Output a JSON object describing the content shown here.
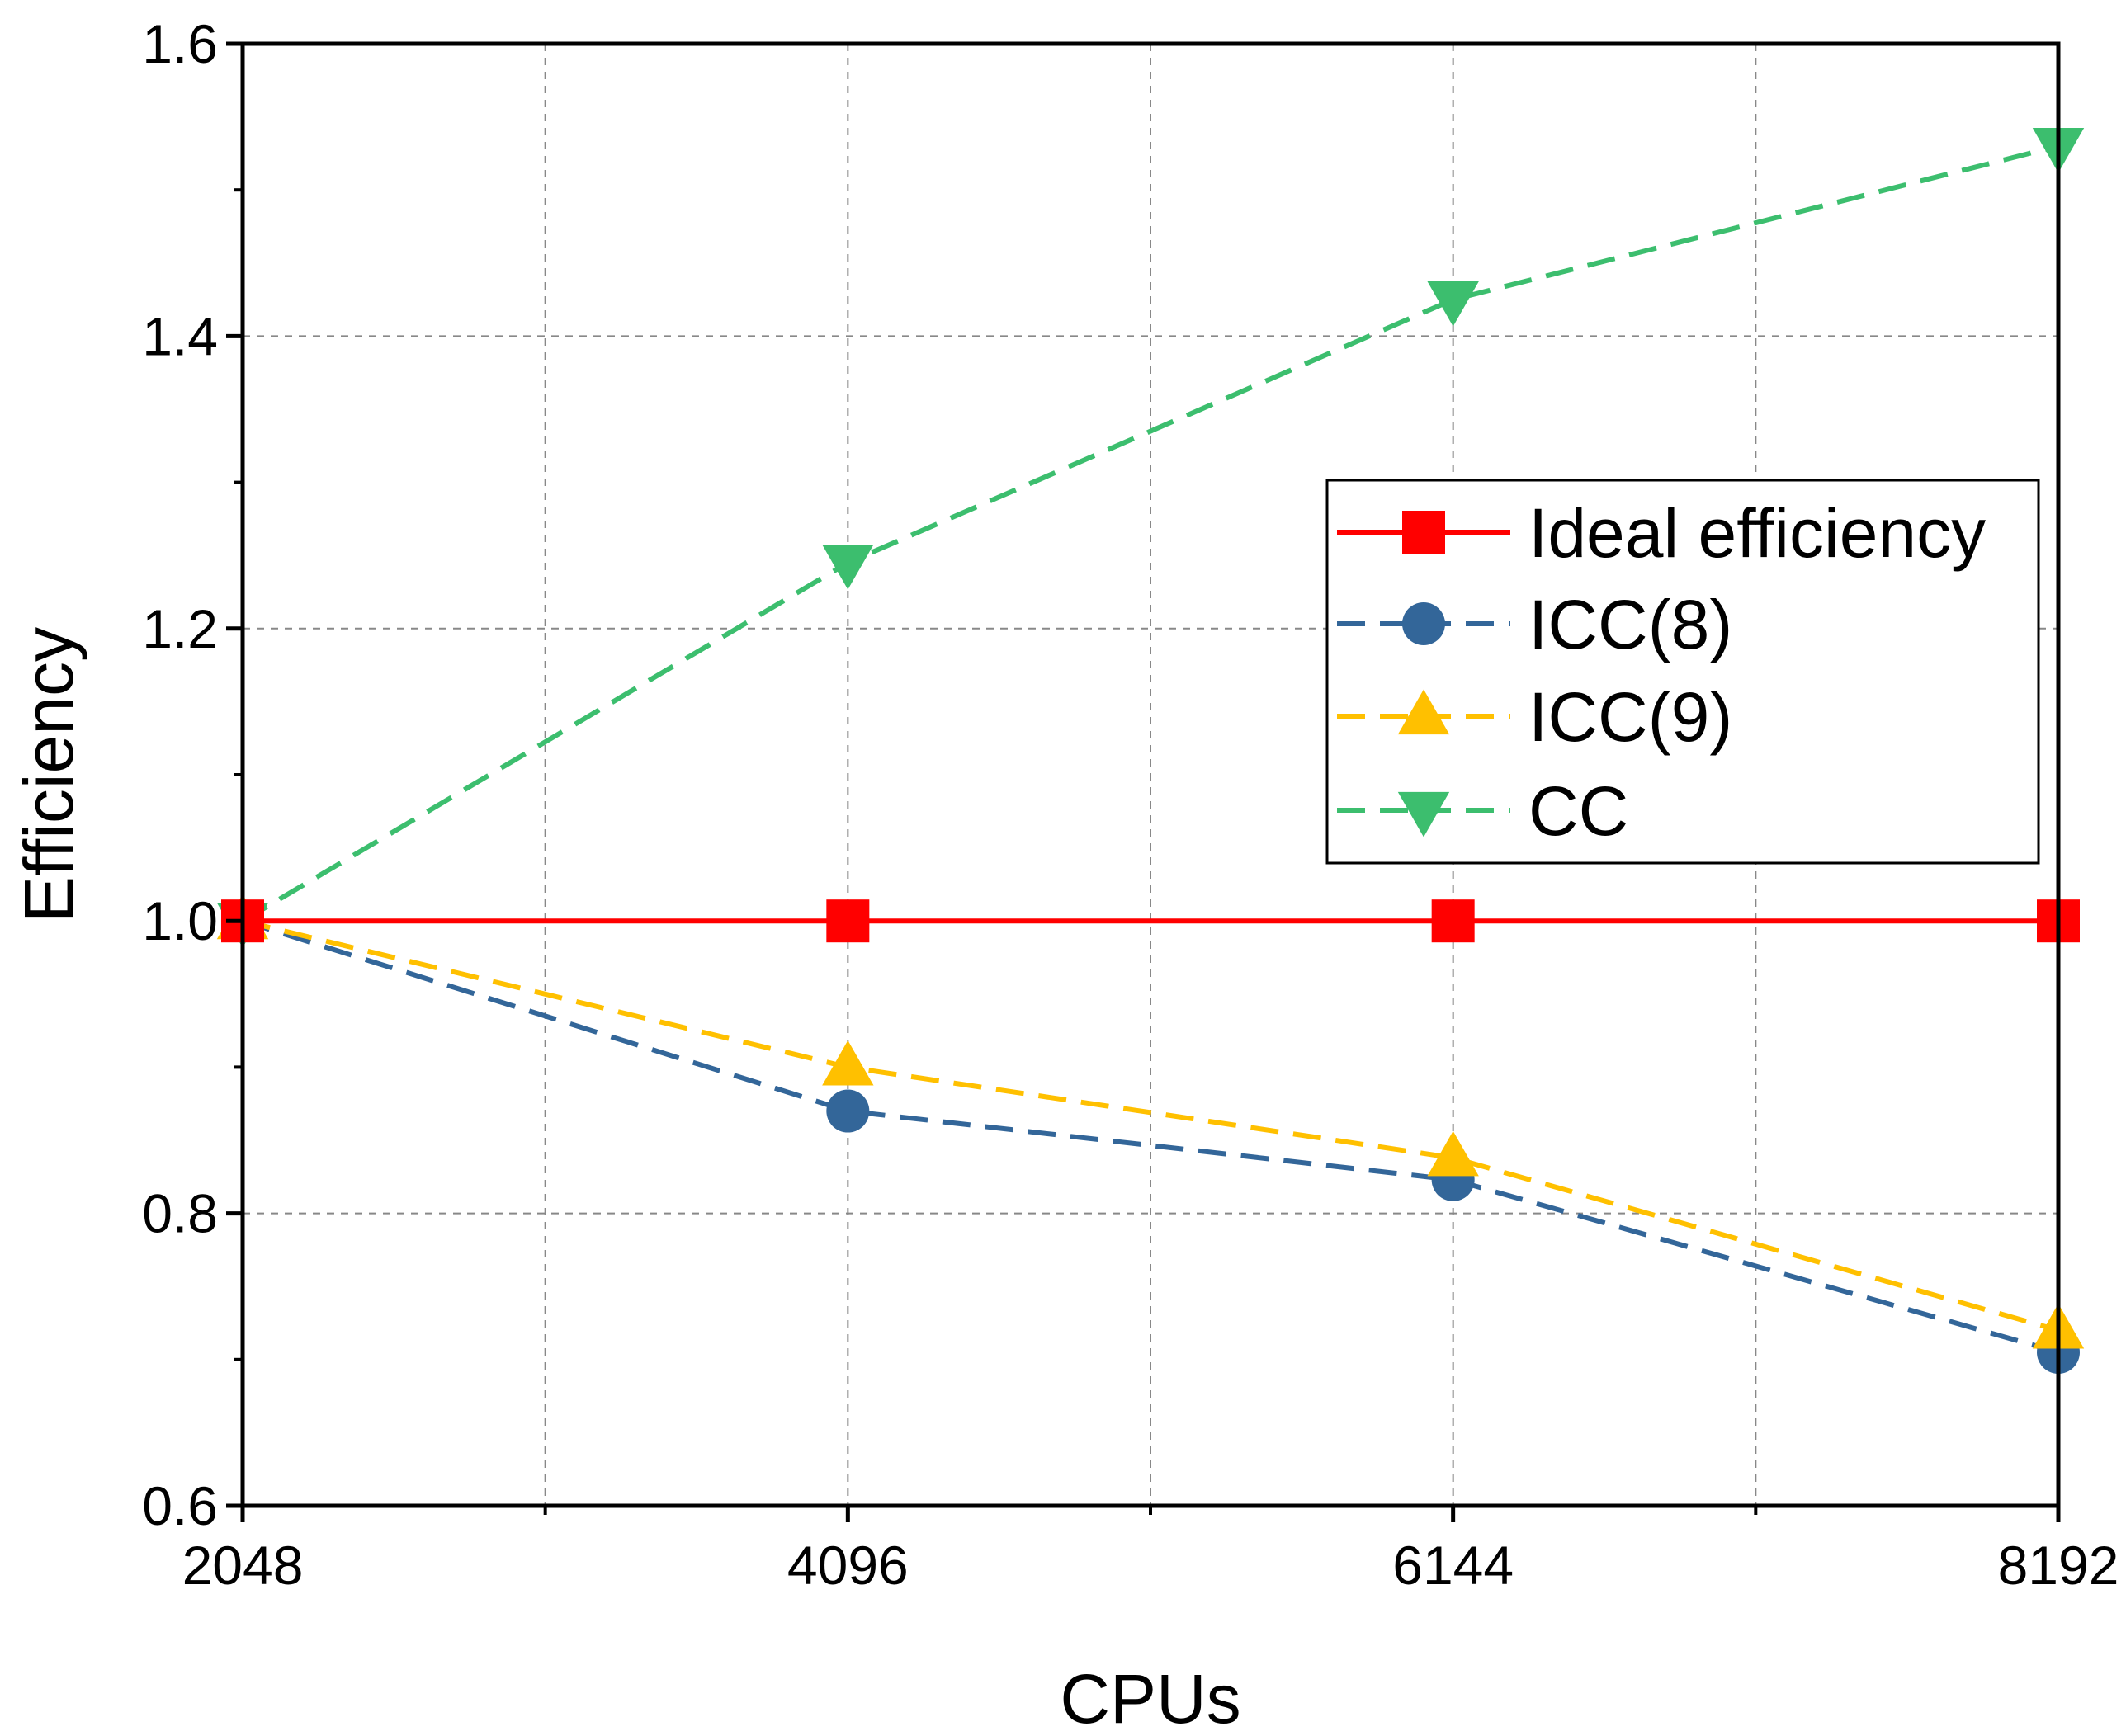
{
  "chart_data": {
    "type": "line",
    "title": "",
    "xlabel": "CPUs",
    "ylabel": "Efficiency",
    "categories": [
      "2048",
      "4096",
      "6144",
      "8192"
    ],
    "x": [
      2048,
      4096,
      6144,
      8192
    ],
    "xlim": [
      2048,
      8192
    ],
    "ylim": [
      0.6,
      1.6
    ],
    "x_ticks": [
      "2048",
      "4096",
      "6144",
      "8192"
    ],
    "y_ticks": [
      "0.6",
      "0.8",
      "1.0",
      "1.2",
      "1.4",
      "1.6"
    ],
    "grid": true,
    "legend_position": "center-right",
    "series": [
      {
        "name": "Ideal efficiency",
        "values": [
          1.0,
          1.0,
          1.0,
          1.0
        ],
        "color": "#ff0000",
        "line_style": "solid",
        "marker": "square"
      },
      {
        "name": "ICC(8)",
        "values": [
          1.0,
          0.87,
          0.823,
          0.705
        ],
        "color": "#336699",
        "line_style": "dashed",
        "marker": "circle"
      },
      {
        "name": "ICC(9)",
        "values": [
          1.0,
          0.9,
          0.838,
          0.72
        ],
        "color": "#ffc000",
        "line_style": "dashed",
        "marker": "triangle-up"
      },
      {
        "name": "CC",
        "values": [
          1.0,
          1.245,
          1.425,
          1.53
        ],
        "color": "#3cbe6e",
        "line_style": "dashed",
        "marker": "triangle-down"
      }
    ]
  }
}
